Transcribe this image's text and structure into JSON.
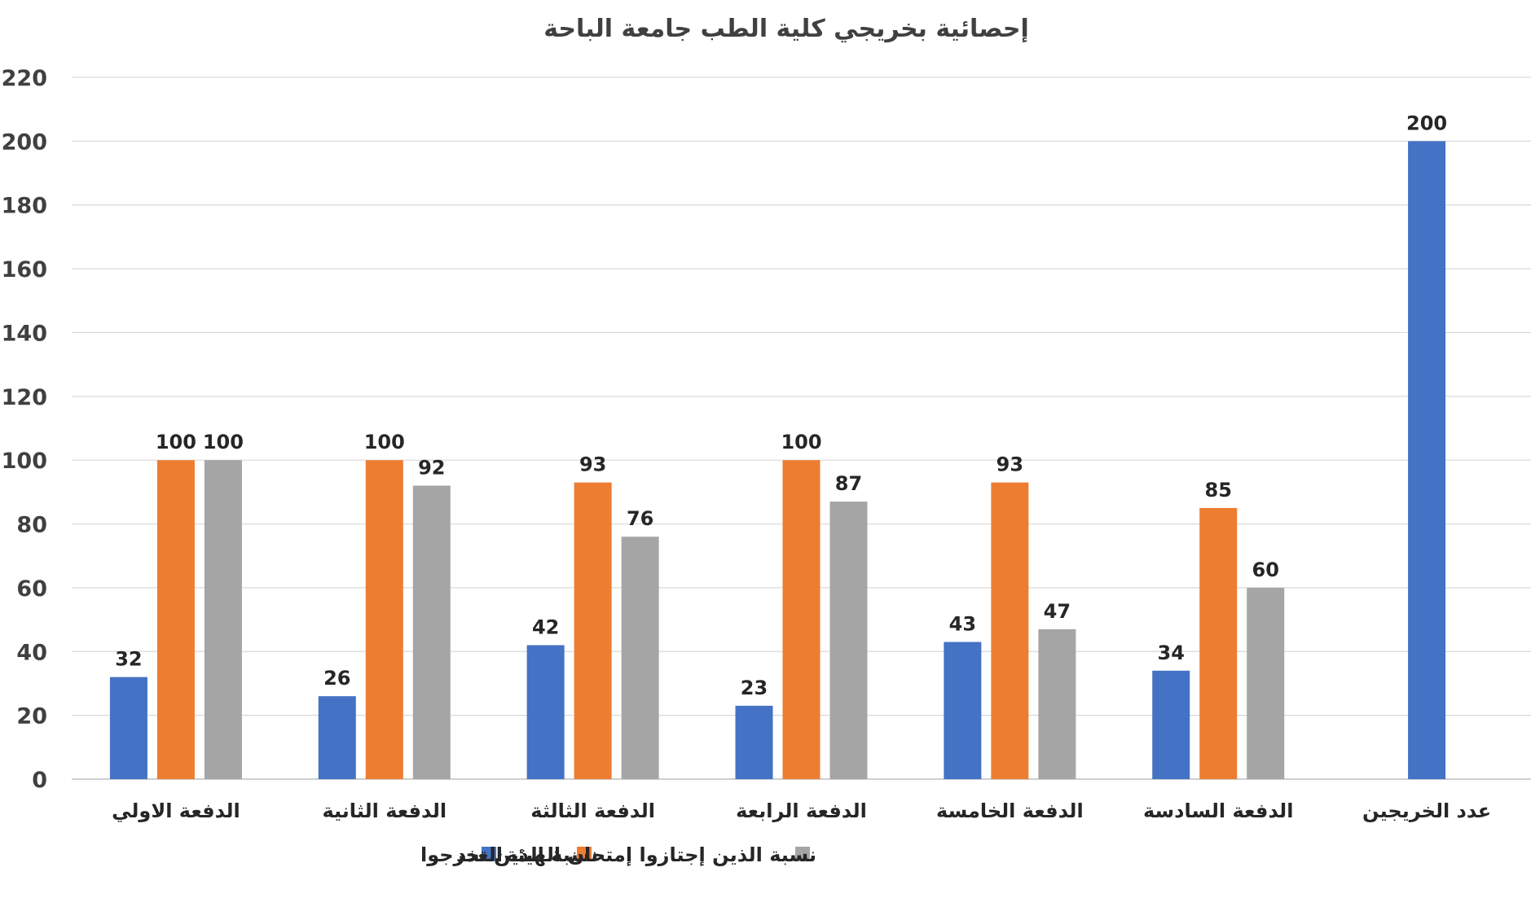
{
  "chart_data": {
    "type": "bar",
    "title": "إحصائية بخريجي كلية الطب جامعة الباحة",
    "xlabel": "",
    "ylabel": "",
    "ylim": [
      0,
      220
    ],
    "yticks": [
      0,
      20,
      40,
      60,
      80,
      100,
      120,
      140,
      160,
      180,
      200,
      220
    ],
    "grid": true,
    "legend_position": "bottom",
    "categories": [
      "الدفعة الاولي",
      "الدفعة الثانية",
      "الدفعة الثالثة",
      "الدفعة الرابعة",
      "الدفعة الخامسة",
      "الدفعة السادسة",
      "عدد الخريجين"
    ],
    "series": [
      {
        "name": "العدد",
        "color": "#4472C4",
        "values": [
          32,
          26,
          42,
          23,
          43,
          34,
          200
        ]
      },
      {
        "name": "نسبة الذين تخرجوا",
        "color": "#ED7D31",
        "values": [
          100,
          100,
          93,
          100,
          93,
          85,
          null
        ]
      },
      {
        "name": "نسبة الذين إجتازوا إمتحان الهيئة",
        "color": "#A5A5A5",
        "values": [
          100,
          92,
          76,
          87,
          47,
          60,
          null
        ]
      }
    ],
    "data_labels": true
  }
}
